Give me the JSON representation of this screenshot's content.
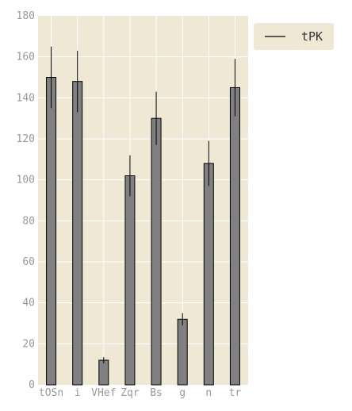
{
  "chart_data": {
    "type": "bar",
    "title": "",
    "xlabel": "",
    "ylabel": "",
    "categories": [
      "tOSn",
      "i",
      "VHef",
      "Zqr",
      "Bs",
      "g",
      "n",
      "tr"
    ],
    "series": [
      {
        "name": "tPK",
        "values": [
          150,
          148,
          12,
          102,
          130,
          32,
          108,
          145
        ],
        "errors": [
          15,
          15,
          1.5,
          10,
          13,
          3,
          11,
          14
        ]
      }
    ],
    "ylim": [
      0,
      180
    ],
    "yticks": [
      0,
      20,
      40,
      60,
      80,
      100,
      120,
      140,
      160,
      180
    ],
    "grid": true,
    "legend_position": "outside-top-right",
    "colors": {
      "plot_background": "#EEE8D5",
      "bar_fill": "#808080",
      "bar_edge": "#000000",
      "grid": "#FFFFFF",
      "tick_label": "#999999"
    }
  }
}
